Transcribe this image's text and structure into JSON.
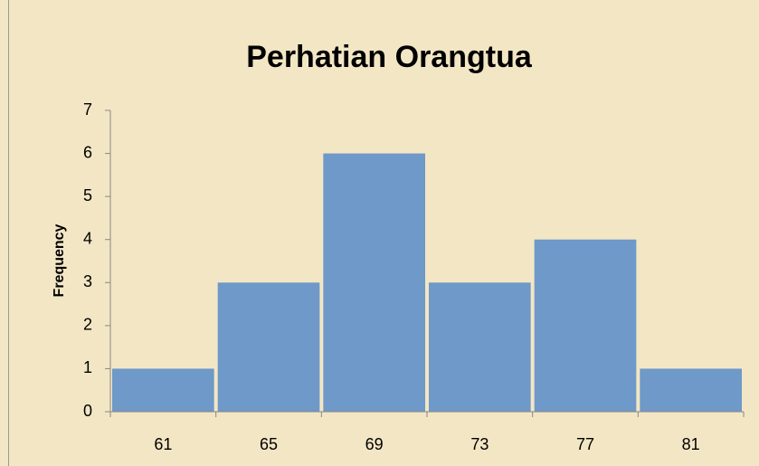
{
  "chart_data": {
    "type": "bar",
    "title": "Perhatian Orangtua",
    "y_label": "Frequency",
    "categories": [
      "61",
      "65",
      "69",
      "73",
      "77",
      "81"
    ],
    "values": [
      1,
      3,
      6,
      3,
      4,
      1
    ],
    "color": "#5b8ec8",
    "ylim": [
      0,
      7
    ],
    "yticks": [
      0,
      1,
      2,
      3,
      4,
      5,
      6,
      7
    ],
    "grid": false
  }
}
